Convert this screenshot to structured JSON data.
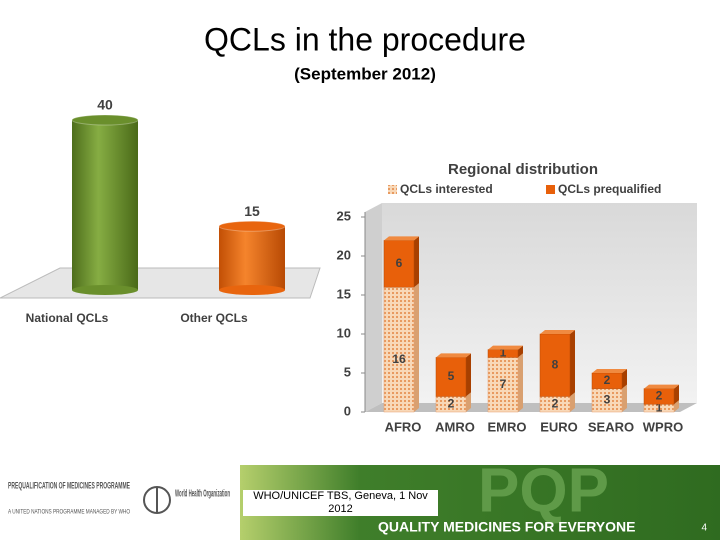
{
  "title": "QCLs in the procedure",
  "subtitle": "(September 2012)",
  "chart_data": [
    {
      "type": "bar",
      "categories": [
        "National QCLs",
        "Other QCLs"
      ],
      "values": [
        40,
        15
      ],
      "colors": [
        "#6a8f2c",
        "#e8650e"
      ]
    },
    {
      "type": "stacked_bar",
      "title": "Regional distribution",
      "categories": [
        "AFRO",
        "AMRO",
        "EMRO",
        "EURO",
        "SEARO",
        "WPRO"
      ],
      "series": [
        {
          "name": "QCLs interested",
          "color": "#f4c49a",
          "values": [
            16,
            2,
            7,
            2,
            3,
            1
          ]
        },
        {
          "name": "QCLs prequalified",
          "color": "#e8600a",
          "values": [
            6,
            5,
            1,
            8,
            2,
            2
          ]
        }
      ],
      "ylim": [
        0,
        25
      ],
      "yticks": [
        0,
        5,
        10,
        15,
        20,
        25
      ],
      "legend": "top"
    }
  ],
  "footer": {
    "program": "PREQUALIFICATION OF MEDICINES PROGRAMME",
    "program_sub": "A UNITED NATIONS PROGRAMME MANAGED BY WHO",
    "who": "World Health Organization",
    "event": "WHO/UNICEF TBS, Geneva, 1 Nov 2012",
    "tagline": "QUALITY MEDICINES FOR EVERYONE",
    "brand": "PQP",
    "page": "4"
  }
}
